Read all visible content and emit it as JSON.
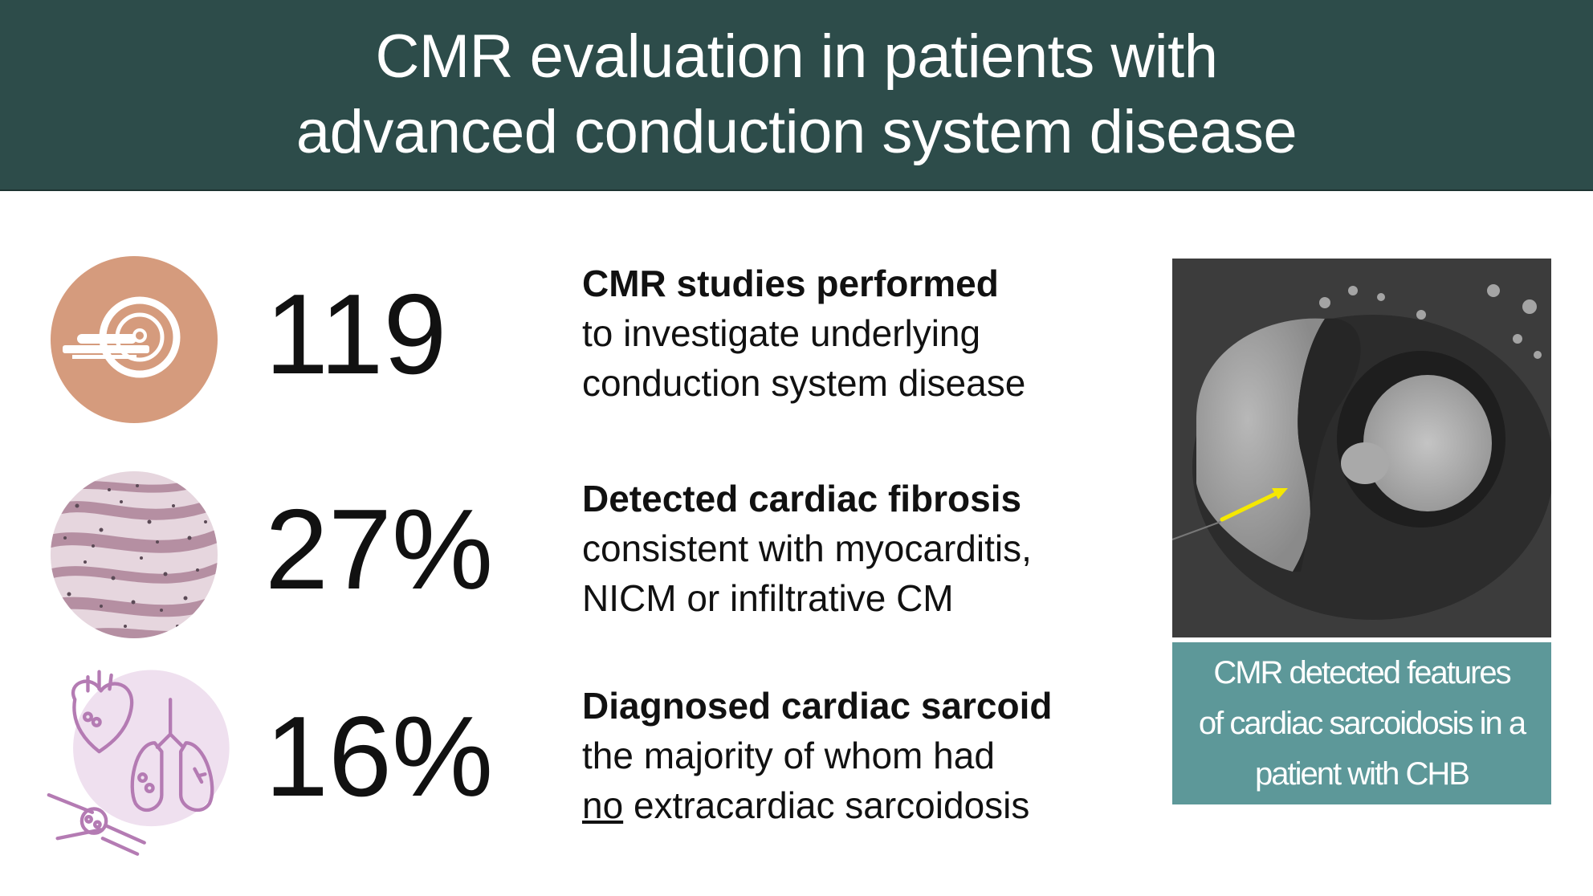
{
  "header": {
    "title_line1": "CMR evaluation in patients with",
    "title_line2": "advanced conduction system disease",
    "background": "#2d4c4a"
  },
  "stats": [
    {
      "icon": "mri-scanner-icon",
      "value": "119",
      "lead": "CMR studies performed",
      "line2": "to investigate underlying",
      "line3": "conduction system disease"
    },
    {
      "icon": "fibrosis-tissue-icon",
      "value": "27%",
      "lead": "Detected cardiac fibrosis",
      "line2": "consistent with myocarditis,",
      "line3": "NICM or infiltrative CM"
    },
    {
      "icon": "heart-lungs-bone-icon",
      "value": "16%",
      "lead": "Diagnosed cardiac sarcoid",
      "line2": "the majority of whom had",
      "line3_underlined": "no",
      "line3_rest": " extracardiac sarcoidosis"
    }
  ],
  "image_panel": {
    "caption_line1": "CMR detected features",
    "caption_line2": "of cardiac sarcoidosis in a",
    "caption_line3": "patient with CHB",
    "caption_background": "#5d9899",
    "arrow_color": "#f5e800"
  },
  "colors": {
    "mri_icon_circle": "#d59b7d",
    "fibrosis_pink": "#b58fa2",
    "sarcoid_circle": "#efe0ef",
    "sarcoid_line": "#b47bb3"
  }
}
